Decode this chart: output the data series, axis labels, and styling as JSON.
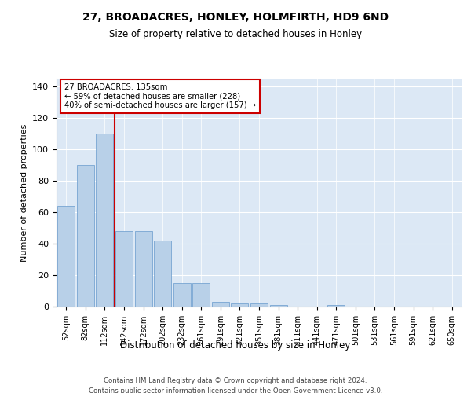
{
  "title": "27, BROADACRES, HONLEY, HOLMFIRTH, HD9 6ND",
  "subtitle": "Size of property relative to detached houses in Honley",
  "xlabel": "Distribution of detached houses by size in Honley",
  "ylabel": "Number of detached properties",
  "bar_labels": [
    "52sqm",
    "82sqm",
    "112sqm",
    "142sqm",
    "172sqm",
    "202sqm",
    "232sqm",
    "261sqm",
    "291sqm",
    "321sqm",
    "351sqm",
    "381sqm",
    "411sqm",
    "441sqm",
    "471sqm",
    "501sqm",
    "531sqm",
    "561sqm",
    "591sqm",
    "621sqm",
    "650sqm"
  ],
  "bar_values": [
    64,
    90,
    110,
    48,
    48,
    42,
    15,
    15,
    3,
    2,
    2,
    1,
    0,
    0,
    1,
    0,
    0,
    0,
    0,
    0,
    0
  ],
  "bar_color": "#b8d0e8",
  "bar_edge_color": "#6699cc",
  "vline_color": "#cc0000",
  "annotation_lines": [
    "27 BROADACRES: 135sqm",
    "← 59% of detached houses are smaller (228)",
    "40% of semi-detached houses are larger (157) →"
  ],
  "annotation_box_color": "#ffffff",
  "annotation_box_edge_color": "#cc0000",
  "ylim": [
    0,
    145
  ],
  "yticks": [
    0,
    20,
    40,
    60,
    80,
    100,
    120,
    140
  ],
  "bg_color": "#dce8f5",
  "footer_line1": "Contains HM Land Registry data © Crown copyright and database right 2024.",
  "footer_line2": "Contains public sector information licensed under the Open Government Licence v3.0."
}
